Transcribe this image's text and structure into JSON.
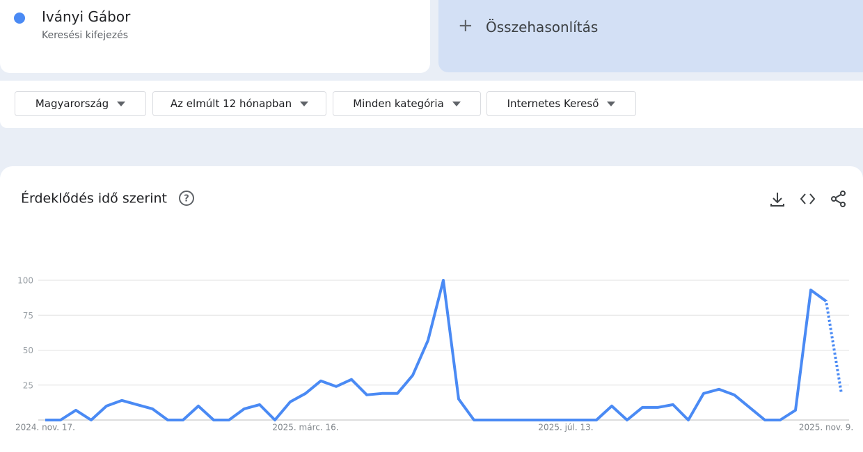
{
  "search_term": {
    "type_label": "Keresési kifejezés"
  },
  "compare_button": "Összehasonlítás",
  "filters": [
    "Magyarország",
    "Az elmúlt 12 hónapban",
    "Minden kategória",
    "Internetes Kereső"
  ],
  "chart_data": {
    "type": "line",
    "title": "Érdeklődés idő szerint",
    "categories": [
      "2024. nov. 17.",
      null,
      null,
      null,
      null,
      null,
      null,
      null,
      null,
      null,
      null,
      null,
      null,
      null,
      null,
      null,
      null,
      "2025. márc. 16.",
      null,
      null,
      null,
      null,
      null,
      null,
      null,
      null,
      null,
      null,
      null,
      null,
      null,
      null,
      null,
      null,
      "2025. júl. 13.",
      null,
      null,
      null,
      null,
      null,
      null,
      null,
      null,
      null,
      null,
      null,
      null,
      null,
      null,
      null,
      null,
      "2025. nov. 9.",
      null
    ],
    "series": [
      {
        "name": "Iványi Gábor",
        "color": "#4a8af4",
        "values": [
          0,
          0,
          7,
          0,
          10,
          14,
          11,
          8,
          0,
          0,
          10,
          0,
          0,
          8,
          11,
          0,
          13,
          19,
          28,
          24,
          29,
          18,
          19,
          19,
          32,
          57,
          100,
          15,
          0,
          0,
          0,
          0,
          0,
          0,
          0,
          0,
          0,
          10,
          0,
          9,
          9,
          11,
          0,
          19,
          22,
          18,
          9,
          0,
          0,
          7,
          93,
          85,
          19
        ]
      }
    ],
    "partial_last_point": true,
    "ylim": [
      0,
      100
    ],
    "yticks": [
      25,
      50,
      75,
      100
    ],
    "grid": true
  }
}
